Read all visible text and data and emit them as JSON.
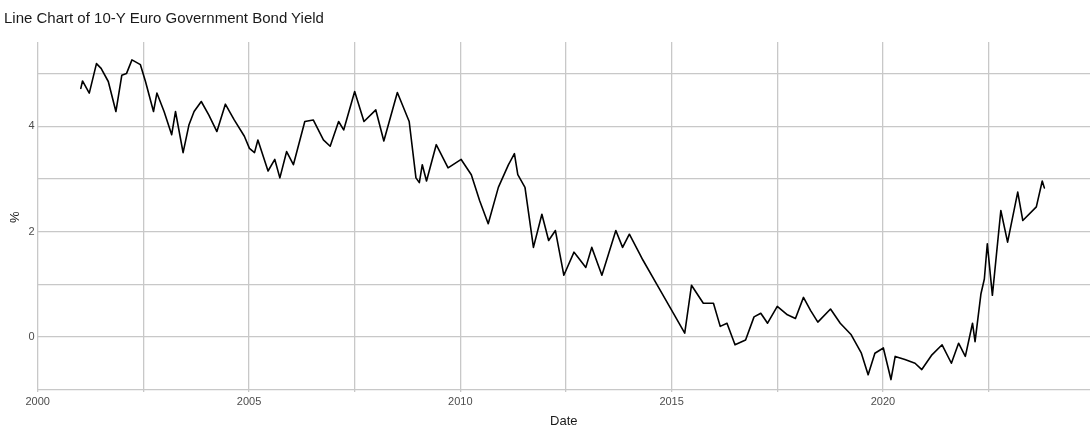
{
  "chart_data": {
    "type": "line",
    "title": "Line Chart of 10-Y Euro Government Bond Yield",
    "xlabel": "Date",
    "ylabel": "%",
    "xlim": [
      2000,
      2024.9
    ],
    "xticks": [
      2000,
      {
        "value": 2002.5,
        "label": null
      },
      2005,
      {
        "value": 2007.5,
        "label": null
      },
      2010,
      {
        "value": 2012.5,
        "label": null
      },
      2015,
      {
        "value": 2017.5,
        "label": null
      },
      2020,
      {
        "value": 2022.5,
        "label": null
      }
    ],
    "ylim": [
      -1.05,
      5.6
    ],
    "yticks": [
      {
        "value": -1,
        "label": null
      },
      0,
      {
        "value": 1,
        "label": null
      },
      2,
      {
        "value": 3,
        "label": null
      },
      4,
      {
        "value": 5,
        "label": null
      }
    ],
    "grid": true,
    "legend": false,
    "marker": "none",
    "line_style": "solid",
    "x": [
      2001.02,
      2001.06,
      2001.22,
      2001.39,
      2001.5,
      2001.67,
      2001.85,
      2001.99,
      2002.1,
      2002.23,
      2002.43,
      2002.55,
      2002.74,
      2002.82,
      2002.99,
      2003.17,
      2003.26,
      2003.44,
      2003.58,
      2003.7,
      2003.87,
      2004.05,
      2004.24,
      2004.44,
      2004.65,
      2004.89,
      2005.01,
      2005.13,
      2005.21,
      2005.45,
      2005.61,
      2005.73,
      2005.89,
      2006.05,
      2006.32,
      2006.52,
      2006.76,
      2006.92,
      2007.12,
      2007.24,
      2007.5,
      2007.72,
      2008.0,
      2008.19,
      2008.51,
      2008.79,
      2008.95,
      2009.03,
      2009.1,
      2009.2,
      2009.43,
      2009.71,
      2010.02,
      2010.26,
      2010.46,
      2010.66,
      2010.9,
      2011.14,
      2011.28,
      2011.36,
      2011.53,
      2011.73,
      2011.93,
      2012.09,
      2012.25,
      2012.45,
      2012.69,
      2012.97,
      2013.11,
      2013.35,
      2013.68,
      2013.84,
      2014.0,
      2014.32,
      2014.64,
      2015.04,
      2015.31,
      2015.47,
      2015.75,
      2015.99,
      2016.15,
      2016.31,
      2016.5,
      2016.75,
      2016.95,
      2017.11,
      2017.27,
      2017.5,
      2017.74,
      2017.93,
      2018.12,
      2018.29,
      2018.46,
      2018.76,
      2018.99,
      2019.25,
      2019.49,
      2019.65,
      2019.81,
      2020.01,
      2020.19,
      2020.29,
      2020.52,
      2020.76,
      2020.92,
      2021.16,
      2021.4,
      2021.62,
      2021.79,
      2021.95,
      2022.12,
      2022.18,
      2022.32,
      2022.4,
      2022.47,
      2022.59,
      2022.79,
      2022.95,
      2023.19,
      2023.31,
      2023.63,
      2023.77,
      2023.82
    ],
    "series": [
      {
        "color": "#000000",
        "values": [
          4.72,
          4.86,
          4.63,
          5.19,
          5.1,
          4.85,
          4.28,
          4.97,
          5.0,
          5.26,
          5.17,
          4.85,
          4.28,
          4.63,
          4.28,
          3.84,
          4.28,
          3.5,
          4.03,
          4.28,
          4.47,
          4.21,
          3.9,
          4.42,
          4.12,
          3.81,
          3.58,
          3.5,
          3.74,
          3.15,
          3.37,
          3.02,
          3.52,
          3.27,
          4.09,
          4.12,
          3.74,
          3.62,
          4.09,
          3.93,
          4.66,
          4.09,
          4.31,
          3.72,
          4.64,
          4.09,
          3.02,
          2.93,
          3.27,
          2.96,
          3.65,
          3.21,
          3.37,
          3.08,
          2.58,
          2.15,
          2.84,
          3.27,
          3.48,
          3.08,
          2.84,
          1.7,
          2.33,
          1.83,
          2.02,
          1.17,
          1.61,
          1.32,
          1.7,
          1.17,
          2.02,
          1.7,
          1.95,
          1.46,
          1.01,
          0.45,
          0.07,
          0.98,
          0.64,
          0.64,
          0.2,
          0.26,
          -0.15,
          -0.06,
          0.38,
          0.45,
          0.26,
          0.58,
          0.42,
          0.35,
          0.75,
          0.5,
          0.28,
          0.53,
          0.26,
          0.04,
          -0.31,
          -0.72,
          -0.31,
          -0.21,
          -0.81,
          -0.37,
          -0.43,
          -0.5,
          -0.62,
          -0.34,
          -0.15,
          -0.5,
          -0.12,
          -0.37,
          0.26,
          -0.09,
          0.82,
          1.1,
          1.77,
          0.79,
          2.4,
          1.8,
          2.75,
          2.21,
          2.47,
          2.96,
          2.83
        ]
      }
    ]
  }
}
